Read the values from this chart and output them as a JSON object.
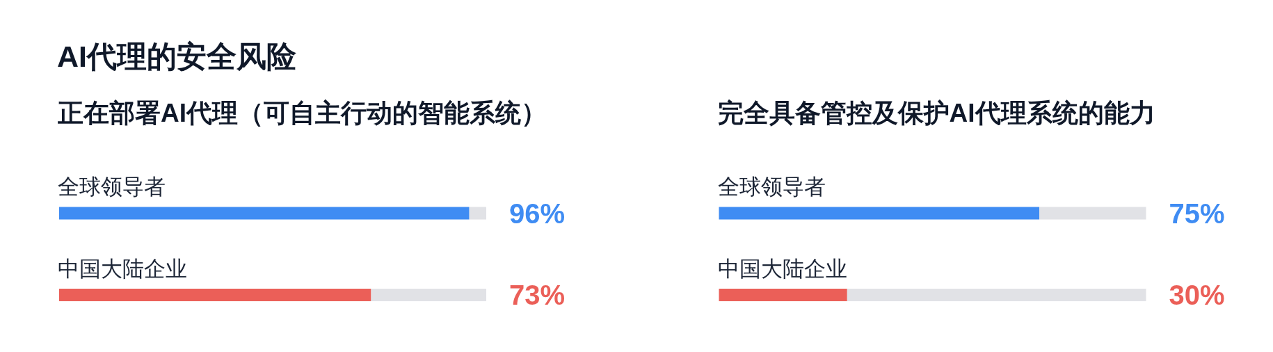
{
  "chart_data": [
    {
      "type": "bar",
      "orientation": "horizontal",
      "title": "AI代理的安全风险",
      "subtitle": "正在部署AI代理（可自主行动的智能系统）",
      "categories": [
        "全球领导者",
        "中国大陆企业"
      ],
      "values": [
        96,
        73
      ],
      "colors": [
        "#3f8cf3",
        "#eb5f58"
      ],
      "value_labels": [
        "96%",
        "73%"
      ],
      "xlim": [
        0,
        100
      ],
      "tick_labels": "y"
    },
    {
      "type": "bar",
      "orientation": "horizontal",
      "subtitle": "完全具备管控及保护AI代理系统的能力",
      "categories": [
        "全球领导者",
        "中国大陆企业"
      ],
      "values": [
        75,
        30
      ],
      "colors": [
        "#3f8cf3",
        "#eb5f58"
      ],
      "value_labels": [
        "75%",
        "30%"
      ],
      "xlim": [
        0,
        100
      ],
      "tick_labels": "y"
    }
  ]
}
